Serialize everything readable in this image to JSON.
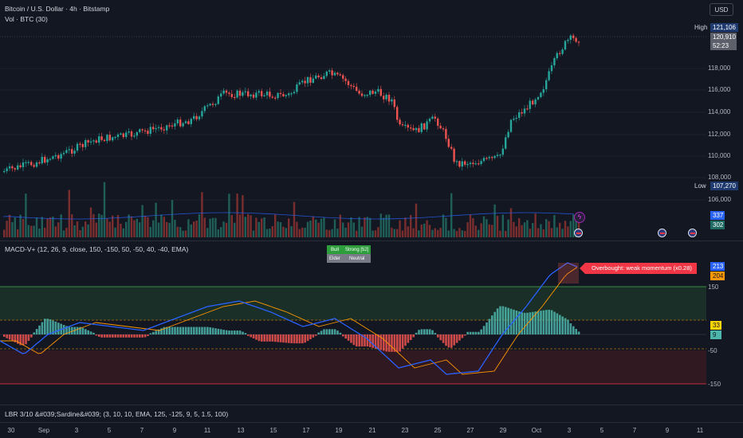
{
  "header": {
    "symbol_title": "Bitcoin / U.S. Dollar · 4h · Bitstamp",
    "volume_label": "Vol · BTC (30)",
    "currency_button": "USD"
  },
  "price_axis": {
    "ticks": [
      "118,000",
      "116,000",
      "114,000",
      "112,000",
      "110,000",
      "108,000",
      "106,000"
    ],
    "high_label": "High",
    "high_value": "121,106",
    "last_price": "120,910",
    "countdown": "52:23",
    "low_label": "Low",
    "low_value": "107,270",
    "volume_tags": [
      "337",
      "302"
    ]
  },
  "macd": {
    "legend": "MACD-V+ (12, 26, 9, close, 150, -150, 50, -50, 40, -40, EMA)",
    "ticks": [
      "150",
      "-50",
      "-150"
    ],
    "value_tags": [
      "213",
      "204",
      "33",
      "9"
    ],
    "callout": "Overbought: weak momentum (x0.28)",
    "table": {
      "row1": [
        "Bull",
        "Strong [52]"
      ],
      "row2": [
        "Elder",
        "Neutral"
      ]
    }
  },
  "lower_indicator": {
    "legend": "LBR 3/10 &#039;Sardine&#039; (3, 10, 10, EMA, 125, -125, 9, 5, 1.5, 100)"
  },
  "time_axis": {
    "ticks": [
      "30",
      "Sep",
      "3",
      "5",
      "7",
      "9",
      "11",
      "13",
      "15",
      "17",
      "19",
      "21",
      "23",
      "25",
      "27",
      "29",
      "Oct",
      "3",
      "5",
      "7",
      "9",
      "11"
    ]
  },
  "colors": {
    "background": "#131722",
    "up": "#26a69a",
    "down": "#ef5350",
    "macd_line": "#2962ff",
    "signal_line": "#ff9800",
    "overbought_zone": "#1c3a2a",
    "oversold_zone": "#3a1a22"
  },
  "icons": [
    "usd-flag-icon",
    "lightning-icon"
  ]
}
